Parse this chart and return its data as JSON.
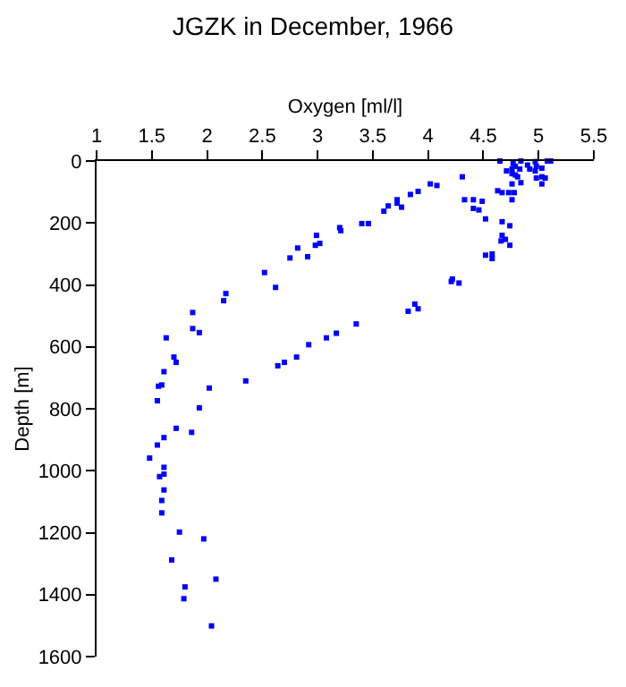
{
  "chart_data": {
    "type": "scatter",
    "title": "JGZK in December, 1966",
    "xlabel": "Oxygen [ml/l]",
    "ylabel": "Depth [m]",
    "xlim": [
      1,
      5.5
    ],
    "xticks": [
      1,
      1.5,
      2,
      2.5,
      3,
      3.5,
      4,
      4.5,
      5,
      5.5
    ],
    "ylim": [
      1600,
      0
    ],
    "yticks": [
      0,
      200,
      400,
      600,
      800,
      1000,
      1200,
      1400,
      1600
    ],
    "marker": "square",
    "x": [
      4.65,
      4.77,
      4.84,
      4.97,
      5.11,
      5.08,
      4.9,
      4.98,
      5.03,
      4.79,
      4.76,
      4.71,
      4.83,
      4.92,
      4.97,
      4.79,
      4.76,
      5.03,
      4.81,
      5.06,
      4.98,
      4.84,
      4.76,
      5.03,
      4.31,
      4.02,
      4.08,
      4.63,
      4.67,
      4.73,
      4.78,
      4.76,
      3.91,
      3.84,
      4.33,
      4.41,
      4.49,
      4.41,
      4.46,
      4.52,
      3.72,
      3.72,
      3.76,
      3.64,
      3.6,
      4.67,
      4.74,
      3.4,
      3.46,
      3.2,
      3.21,
      2.99,
      3.02,
      2.98,
      2.82,
      2.75,
      2.91,
      4.67,
      4.7,
      4.66,
      4.74,
      4.52,
      4.58,
      4.58,
      2.52,
      2.62,
      2.17,
      2.15,
      4.21,
      4.22,
      4.28,
      1.87,
      3.82,
      3.88,
      3.91,
      1.63,
      1.87,
      1.93,
      1.7,
      1.72,
      1.61,
      1.56,
      1.59,
      1.55,
      2.02,
      1.93,
      1.72,
      1.86,
      1.61,
      1.55,
      1.48,
      1.61,
      1.57,
      1.61,
      1.61,
      1.59,
      1.59,
      2.35,
      2.64,
      2.7,
      2.81,
      2.92,
      3.08,
      3.17,
      3.35,
      1.75,
      1.97,
      1.68,
      2.08,
      1.8,
      1.79,
      2.04
    ],
    "series": [
      {
        "color": "#0000ff",
        "values": [
          0,
          8,
          0,
          2,
          0,
          0,
          13,
          17,
          23,
          17,
          26,
          32,
          26,
          26,
          32,
          45,
          41,
          51,
          51,
          55,
          55,
          70,
          74,
          74,
          51,
          74,
          79,
          96,
          102,
          102,
          102,
          125,
          98,
          108,
          125,
          125,
          130,
          153,
          158,
          187,
          125,
          136,
          149,
          145,
          162,
          196,
          209,
          202,
          202,
          215,
          225,
          240,
          266,
          272,
          281,
          313,
          309,
          240,
          253,
          258,
          272,
          304,
          300,
          315,
          360,
          408,
          428,
          451,
          389,
          381,
          394,
          489,
          485,
          462,
          477,
          571,
          541,
          554,
          633,
          650,
          680,
          727,
          723,
          774,
          733,
          797,
          863,
          876,
          893,
          917,
          959,
          989,
          1019,
          1011,
          1062,
          1096,
          1136,
          710,
          661,
          650,
          633,
          593,
          571,
          556,
          526,
          1198,
          1220,
          1288,
          1350,
          1375,
          1413,
          1501
        ]
      }
    ]
  }
}
